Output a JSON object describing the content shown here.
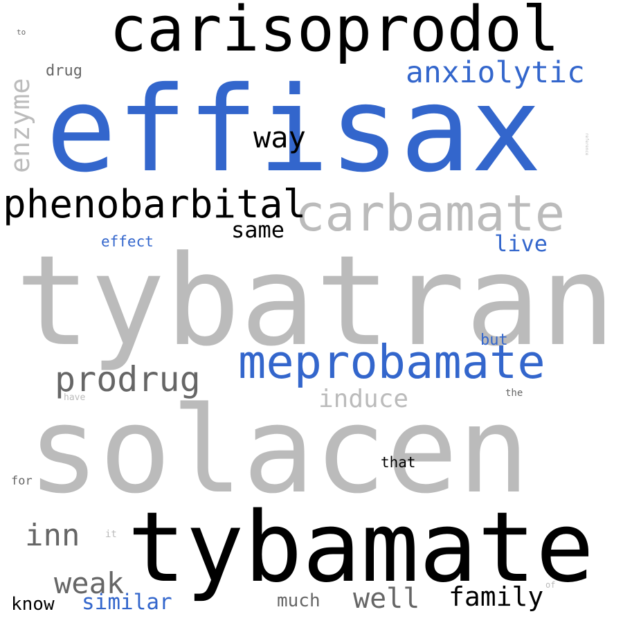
{
  "colors": {
    "black": "#000000",
    "blue": "#3366cc",
    "light_gray": "#bbbbbb",
    "dark_gray": "#666666"
  },
  "words": {
    "carisoprodol": "carisoprodol",
    "effisax": "effisax",
    "anxiolytic": "anxiolytic",
    "drug": "drug",
    "to": "to",
    "enzyme": "enzyme",
    "in": "in",
    "reference": "reference",
    "way": "way",
    "phenobarbital": "phenobarbital",
    "carbamate": "carbamate",
    "same": "same",
    "effect": "effect",
    "live": "live",
    "tybatran": "tybatran",
    "but": "but",
    "meprobamate": "meprobamate",
    "prodrug": "prodrug",
    "induce": "induce",
    "have": "have",
    "the": "the",
    "solacen": "solacen",
    "for": "for",
    "that": "that",
    "tybamate": "tybamate",
    "inn": "inn",
    "it": "it",
    "weak": "weak",
    "of": "of",
    "know": "know",
    "similar": "similar",
    "much": "much",
    "well": "well",
    "family": "family"
  }
}
